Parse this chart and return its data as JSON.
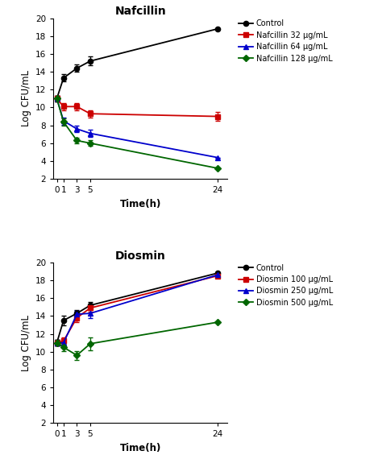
{
  "time_points": [
    0,
    1,
    3,
    5,
    24
  ],
  "nafcillin": {
    "title": "Nafcillin",
    "series": [
      {
        "label": "Control",
        "color": "#000000",
        "marker": "o",
        "y": [
          11.0,
          13.3,
          14.4,
          15.2,
          18.8
        ],
        "yerr": [
          0.3,
          0.4,
          0.4,
          0.5,
          0.0
        ]
      },
      {
        "label": "Nafcillin 32 μg/mL",
        "color": "#cc0000",
        "marker": "s",
        "y": [
          11.0,
          10.1,
          10.1,
          9.3,
          9.0
        ],
        "yerr": [
          0.3,
          0.4,
          0.4,
          0.4,
          0.5
        ]
      },
      {
        "label": "Nafcillin 64 μg/mL",
        "color": "#0000cc",
        "marker": "^",
        "y": [
          11.0,
          8.5,
          7.6,
          7.1,
          4.4
        ],
        "yerr": [
          0.3,
          0.4,
          0.4,
          0.4,
          0.0
        ]
      },
      {
        "label": "Nafcillin 128 μg/mL",
        "color": "#006600",
        "marker": "D",
        "y": [
          11.0,
          8.4,
          6.3,
          6.0,
          3.2
        ],
        "yerr": [
          0.3,
          0.4,
          0.3,
          0.3,
          0.0
        ]
      }
    ],
    "ylim": [
      2,
      20
    ],
    "yticks": [
      2,
      4,
      6,
      8,
      10,
      12,
      14,
      16,
      18,
      20
    ],
    "ylabel": "Log CFU/mL",
    "xlabel": "Time(h)"
  },
  "diosmin": {
    "title": "Diosmin",
    "series": [
      {
        "label": "Control",
        "color": "#000000",
        "marker": "o",
        "y": [
          11.0,
          13.5,
          14.3,
          15.2,
          18.8
        ],
        "yerr": [
          0.3,
          0.5,
          0.4,
          0.4,
          0.0
        ]
      },
      {
        "label": "Diosmin 100 μg/mL",
        "color": "#cc0000",
        "marker": "s",
        "y": [
          11.0,
          11.2,
          13.8,
          14.9,
          18.5
        ],
        "yerr": [
          0.3,
          0.4,
          0.5,
          0.4,
          0.0
        ]
      },
      {
        "label": "Diosmin 250 μg/mL",
        "color": "#0000cc",
        "marker": "^",
        "y": [
          11.0,
          11.0,
          14.2,
          14.3,
          18.6
        ],
        "yerr": [
          0.3,
          0.3,
          0.4,
          0.5,
          0.0
        ]
      },
      {
        "label": "Diosmin 500 μg/mL",
        "color": "#006600",
        "marker": "D",
        "y": [
          11.0,
          10.5,
          9.6,
          10.9,
          13.3
        ],
        "yerr": [
          0.3,
          0.4,
          0.5,
          0.7,
          0.0
        ]
      }
    ],
    "ylim": [
      2,
      20
    ],
    "yticks": [
      2,
      4,
      6,
      8,
      10,
      12,
      14,
      16,
      18,
      20
    ],
    "ylabel": "Log CFU/mL",
    "xlabel": "Time(h)"
  },
  "xticks": [
    0,
    1,
    3,
    5,
    24
  ],
  "xlim": [
    -0.5,
    25.5
  ],
  "markersize": 4.5,
  "linewidth": 1.3,
  "capsize": 2.5,
  "elinewidth": 0.9,
  "legend_fontsize": 7.0,
  "tick_fontsize": 7.5,
  "label_fontsize": 8.5,
  "title_fontsize": 10
}
